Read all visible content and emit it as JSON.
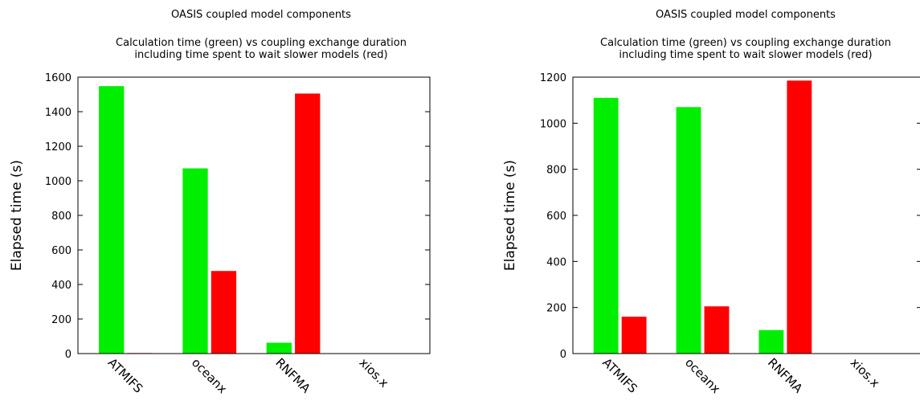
{
  "chart_data": [
    {
      "type": "bar",
      "title": "OASIS coupled model components",
      "subtitle_lines": [
        "Calculation time (green) vs coupling exchange duration",
        "including time spent to wait slower models (red)"
      ],
      "ylabel": "Elapsed time (s)",
      "ylim": [
        0,
        1600
      ],
      "yticks": [
        "0",
        "200",
        "400",
        "600",
        "800",
        "1000",
        "1200",
        "1400",
        "1600"
      ],
      "categories": [
        "ATMIFS",
        "oceanx",
        "RNFMA",
        "xios.x"
      ],
      "series": [
        {
          "values": [
            1548,
            1072,
            63,
            0
          ],
          "color": "#00ee00"
        },
        {
          "values": [
            3,
            478,
            1505,
            0
          ],
          "color": "#ff0000"
        }
      ],
      "grid": false
    },
    {
      "type": "bar",
      "title": "OASIS coupled model components",
      "subtitle_lines": [
        "Calculation time (green) vs coupling exchange duration",
        "including time spent to wait slower models (red)"
      ],
      "ylabel": "Elapsed time (s)",
      "ylim": [
        0,
        1200
      ],
      "yticks": [
        "0",
        "200",
        "400",
        "600",
        "800",
        "1000",
        "1200"
      ],
      "categories": [
        "ATMIFS",
        "oceanx",
        "RNFMA",
        "xios.x"
      ],
      "series": [
        {
          "values": [
            1110,
            1070,
            102,
            0
          ],
          "color": "#00ee00"
        },
        {
          "values": [
            160,
            205,
            1185,
            0
          ],
          "color": "#ff0000"
        }
      ],
      "grid": false
    }
  ]
}
